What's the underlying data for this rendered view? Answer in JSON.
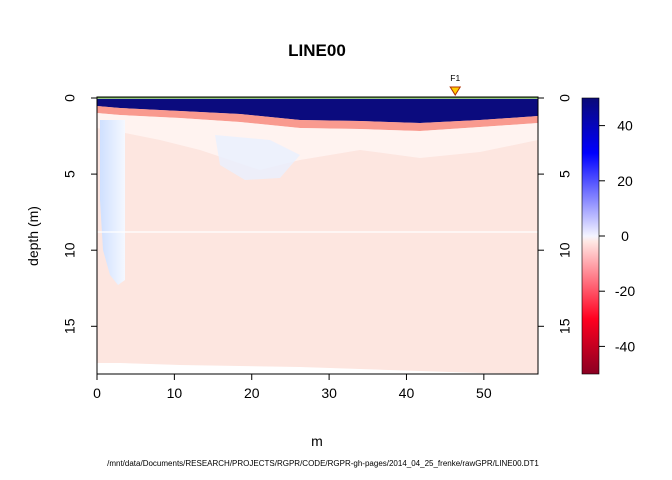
{
  "chart_data": {
    "type": "heatmap",
    "title": "LINE00",
    "xlabel": "m",
    "ylabel": "depth (m)",
    "xlim": [
      0,
      57
    ],
    "ylim": [
      18.2,
      0
    ],
    "x_ticks": [
      0,
      10,
      20,
      30,
      40,
      50
    ],
    "y_ticks": [
      0,
      5,
      10,
      15
    ],
    "colorbar": {
      "range": [
        -50,
        50
      ],
      "ticks": [
        40,
        20,
        0,
        -20,
        -40
      ],
      "colors": [
        "#0b0b7a",
        "#0000ff",
        "#e8f0ff",
        "#ffe6e0",
        "#ff0018",
        "#8b0020"
      ]
    },
    "fiducials": [
      {
        "label": "F1",
        "x": 46.3
      }
    ],
    "grid": false,
    "source_file": "/mnt/data/Documents/RESEARCH/PROJECTS/RGPR/CODE/RGPR-gh-pages/2014_04_25_frenke/rawGPR/LINE00.DT1"
  }
}
